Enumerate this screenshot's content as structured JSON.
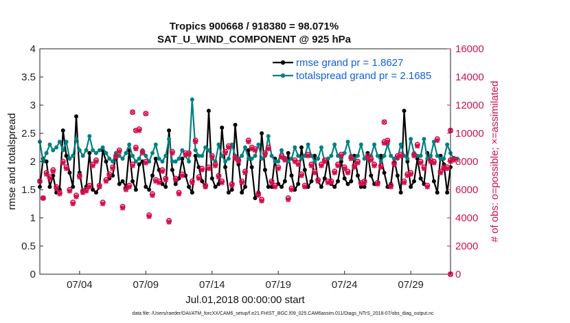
{
  "chart_data": {
    "type": "line",
    "title_line1": "Tropics 900668 / 918380 = 98.071%",
    "title_line2": "SAT_U_WIND_COMPONENT @ 925 hPa",
    "ylabel": "rmse and totalspread",
    "y2label": "# of obs: o=possible; ×=assimilated",
    "xlabel": "Jul.01,2018 00:00:00 start",
    "footnote": "data file: /Users/raeder/DAI/ATM_forcXX/CAM6_setup/f.e21.FHIST_BGC.f09_025.CAM6assim.011/Diags_NTrS_2018-07/obs_diag_output.nc",
    "x_ticks": [
      {
        "x": 4,
        "label": "07/04"
      },
      {
        "x": 9,
        "label": "07/09"
      },
      {
        "x": 14,
        "label": "07/14"
      },
      {
        "x": 19,
        "label": "07/19"
      },
      {
        "x": 24,
        "label": "07/24"
      },
      {
        "x": 29,
        "label": "07/29"
      }
    ],
    "xlim": [
      1,
      32
    ],
    "ylim": [
      0,
      4
    ],
    "y_ticks": [
      "0",
      "0.5",
      "1",
      "1.5",
      "2",
      "2.5",
      "3",
      "3.5",
      "4"
    ],
    "y2lim": [
      0,
      16000
    ],
    "y2_ticks": [
      "0",
      "2000",
      "4000",
      "6000",
      "8000",
      "10000",
      "12000",
      "14000",
      "16000"
    ],
    "x_start": 1.0,
    "x_step": 0.25,
    "legend": [
      {
        "label": "rmse grand pr = 1.8627",
        "color": "#000000"
      },
      {
        "label": "totalspread grand pr = 2.1685",
        "color": "#008080"
      }
    ],
    "series": [
      {
        "name": "rmse",
        "color": "#000000",
        "values": [
          1.55,
          2.05,
          2.0,
          1.55,
          1.75,
          1.45,
          1.5,
          2.55,
          2.1,
          1.8,
          1.55,
          2.8,
          1.8,
          1.45,
          1.55,
          2.15,
          1.5,
          1.45,
          1.55,
          2.2,
          2.0,
          1.7,
          1.75,
          2.15,
          1.6,
          1.65,
          1.55,
          2.2,
          1.65,
          1.5,
          1.95,
          2.0,
          1.55,
          1.5,
          1.75,
          2.05,
          1.85,
          1.6,
          1.55,
          2.55,
          1.85,
          1.6,
          1.7,
          2.05,
          1.75,
          1.55,
          1.45,
          2.1,
          1.9,
          1.65,
          1.55,
          2.9,
          1.7,
          1.55,
          1.6,
          2.6,
          1.9,
          1.45,
          1.5,
          2.65,
          1.95,
          1.45,
          1.55,
          2.2,
          1.9,
          1.35,
          1.45,
          2.5,
          1.85,
          1.55,
          1.55,
          2.05,
          1.6,
          1.55,
          1.65,
          2.15,
          1.75,
          1.5,
          1.6,
          2.25,
          1.85,
          1.55,
          1.65,
          2.1,
          1.65,
          1.55,
          1.7,
          2.05,
          1.6,
          1.55,
          1.65,
          2.0,
          1.7,
          1.6,
          1.65,
          2.1,
          1.75,
          1.55,
          1.55,
          2.15,
          1.75,
          1.6,
          1.6,
          2.1,
          1.8,
          1.55,
          1.6,
          2.05,
          1.75,
          1.45,
          2.9,
          2.0,
          1.55,
          1.65,
          2.05,
          1.7,
          1.6,
          2.15,
          2.0,
          1.65,
          1.45,
          2.1,
          1.95,
          1.45,
          1.9
        ]
      },
      {
        "name": "totalspread",
        "color": "#008080",
        "values": [
          2.35,
          2.0,
          2.15,
          2.3,
          2.2,
          2.25,
          2.35,
          2.2,
          2.35,
          2.05,
          2.1,
          2.4,
          2.2,
          2.1,
          2.2,
          2.45,
          2.2,
          2.15,
          2.2,
          2.25,
          2.15,
          2.05,
          2.0,
          2.15,
          2.1,
          2.05,
          2.15,
          2.3,
          2.1,
          2.0,
          2.05,
          2.2,
          2.1,
          2.0,
          2.15,
          2.3,
          2.05,
          2.0,
          2.1,
          2.4,
          2.0,
          2.0,
          2.05,
          2.2,
          2.1,
          2.0,
          3.1,
          2.2,
          2.1,
          2.1,
          2.25,
          2.2,
          2.05,
          2.0,
          2.3,
          2.1,
          2.0,
          2.05,
          2.3,
          2.1,
          2.05,
          2.1,
          2.25,
          2.05,
          2.05,
          2.1,
          2.3,
          2.05,
          2.1,
          2.45,
          2.1,
          2.0,
          2.0,
          2.2,
          2.05,
          2.0,
          2.05,
          2.25,
          2.1,
          2.05,
          2.1,
          2.3,
          2.1,
          2.0,
          2.05,
          2.25,
          2.0,
          2.05,
          2.1,
          2.3,
          2.1,
          2.05,
          2.15,
          2.35,
          2.1,
          2.05,
          2.1,
          2.3,
          2.05,
          2.05,
          2.1,
          2.3,
          2.1,
          2.0,
          2.1,
          2.3,
          2.1,
          2.05,
          2.05,
          2.3,
          2.1,
          2.05,
          2.4,
          2.15,
          2.1,
          2.1,
          2.4,
          2.05,
          2.1,
          2.35,
          2.1,
          2.05,
          2.05,
          2.3,
          2.15,
          2.05,
          2.05
        ]
      },
      {
        "name": "obs_possible",
        "marker": "o",
        "color": "#d0104c",
        "values": [
          6600,
          5400,
          7200,
          6900,
          7400,
          6200,
          5800,
          8000,
          7600,
          6000,
          5100,
          5600,
          7000,
          5900,
          6000,
          6300,
          7800,
          8100,
          6300,
          5100,
          6700,
          7100,
          7600,
          8400,
          8800,
          4800,
          6100,
          6300,
          7800,
          9000,
          10300,
          8700,
          8000,
          4200,
          5700,
          6700,
          6600,
          7400,
          6800,
          3800,
          8700,
          6800,
          5800,
          7100,
          8600,
          8600,
          6600,
          9500,
          6900,
          7500,
          6300,
          7600,
          8400,
          7800,
          7000,
          6600,
          8700,
          9100,
          6400,
          8300,
          8100,
          6600,
          7300,
          9500,
          9000,
          8900,
          5700,
          5300,
          8600,
          9000,
          6600,
          6300,
          7600,
          8400,
          8200,
          5400,
          6100,
          8100,
          7900,
          7100,
          6300,
          8500,
          7800,
          7300,
          6700,
          7800,
          8100,
          6600,
          6600,
          7300,
          7800,
          8500,
          7600,
          7300,
          8300,
          7700,
          8000,
          6500,
          6600,
          8400,
          8200,
          7800,
          6500,
          7700,
          9400,
          9500,
          6300,
          7900,
          8400,
          8500,
          6600,
          7100,
          7200,
          8500,
          9200,
          8000,
          7600,
          6300,
          8100,
          8000,
          9600,
          7300,
          7600,
          7600,
          8100,
          8200
        ]
      },
      {
        "name": "obs_assimilated",
        "marker": "x",
        "color": "#d0104c",
        "values": [
          6600,
          5400,
          7100,
          6800,
          7300,
          6100,
          5700,
          7900,
          7500,
          5900,
          5000,
          5500,
          6900,
          5800,
          5900,
          6200,
          7700,
          8000,
          6200,
          5000,
          6600,
          7000,
          7500,
          8300,
          8700,
          4700,
          6000,
          6200,
          7700,
          8900,
          10200,
          8600,
          7900,
          4100,
          5600,
          6600,
          6500,
          7300,
          6700,
          3700,
          8600,
          6700,
          5700,
          7000,
          8500,
          8500,
          6500,
          9400,
          6800,
          7400,
          6200,
          7500,
          8300,
          7700,
          6900,
          6500,
          8600,
          9000,
          6300,
          8200,
          8000,
          6500,
          7200,
          9400,
          8900,
          8800,
          5600,
          5200,
          8500,
          8900,
          6500,
          6200,
          7500,
          8300,
          8100,
          5300,
          6000,
          8000,
          7800,
          7000,
          6200,
          8400,
          7700,
          7200,
          6600,
          7700,
          8000,
          6500,
          6500,
          7200,
          7700,
          8400,
          7500,
          7200,
          8200,
          7600,
          7900,
          6400,
          6500,
          8300,
          8100,
          7700,
          6400,
          7600,
          9300,
          9400,
          6200,
          7800,
          8300,
          8400,
          6500,
          7000,
          7100,
          8400,
          9100,
          7900,
          7500,
          6200,
          8000,
          7900,
          9500,
          7200,
          7500,
          7500,
          8000,
          8100
        ]
      }
    ],
    "extra_points": [
      {
        "x": 8.0,
        "obs": 11500
      },
      {
        "x": 8.25,
        "obs": 10200
      },
      {
        "x": 9.0,
        "obs": 11400
      },
      {
        "x": 27.0,
        "obs": 10800
      },
      {
        "x": 32.0,
        "obs": 0
      },
      {
        "x": 32.0,
        "obs": 10200
      }
    ]
  }
}
